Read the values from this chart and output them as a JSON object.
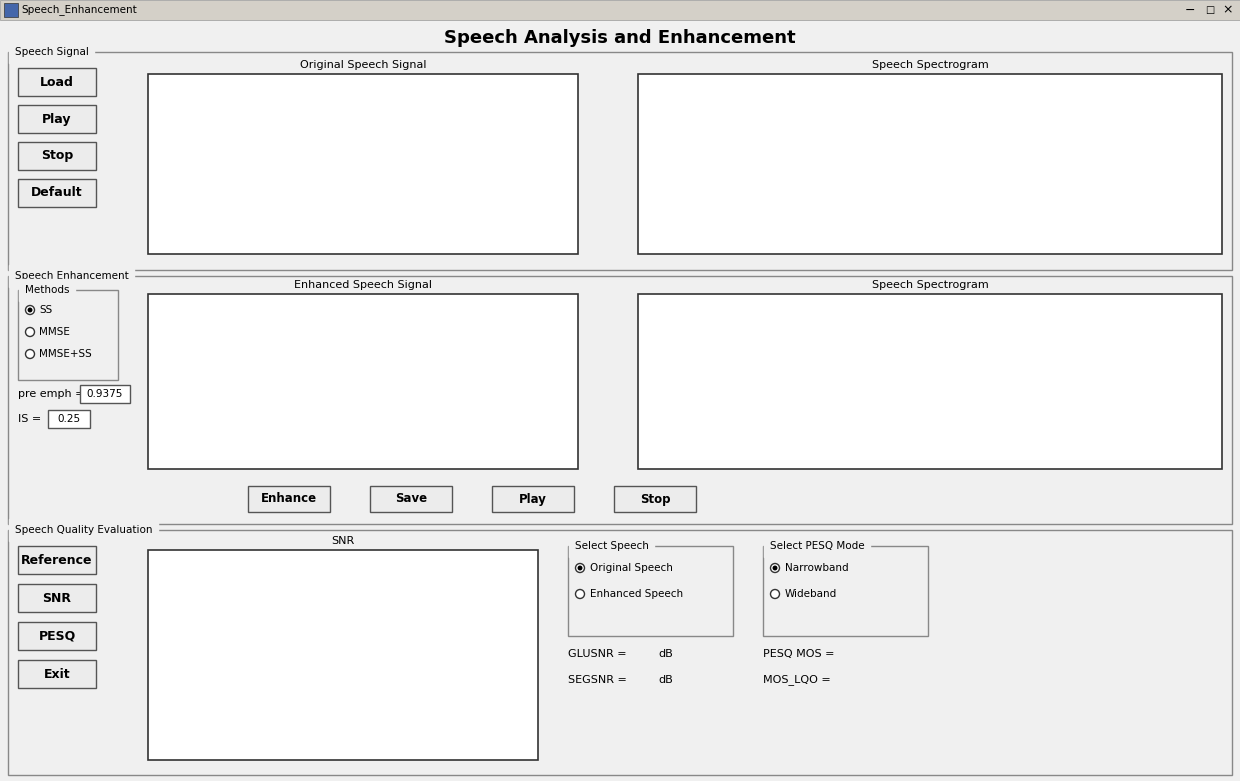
{
  "title": "Speech Analysis and Enhancement",
  "window_title": "Speech_Enhancement",
  "bg_color": "#f0f0f0",
  "section1_label": "Speech Signal",
  "section2_label": "Speech Enhancement",
  "section3_label": "Speech Quality Evaluation",
  "buttons_section1": [
    "Load",
    "Play",
    "Stop",
    "Default"
  ],
  "buttons_section2_bottom": [
    "Enhance",
    "Save",
    "Play",
    "Stop"
  ],
  "buttons_section3": [
    "Reference",
    "SNR",
    "PESQ",
    "Exit"
  ],
  "plot_labels_section1": [
    "Original Speech Signal",
    "Speech Spectrogram"
  ],
  "plot_labels_section2": [
    "Enhanced Speech Signal",
    "Speech Spectrogram"
  ],
  "plot_label_section3": "SNR",
  "methods_label": "Methods",
  "methods": [
    "SS",
    "MMSE",
    "MMSE+SS"
  ],
  "methods_selected": [
    true,
    false,
    false
  ],
  "pre_emph_label": "pre emph =",
  "pre_emph_value": "0.9375",
  "IS_label": "IS =",
  "IS_value": "0.25",
  "select_speech_label": "Select Speech",
  "select_speech_options": [
    "Original Speech",
    "Enhanced Speech"
  ],
  "select_speech_selected": [
    true,
    false
  ],
  "select_pesq_label": "Select PESQ Mode",
  "select_pesq_options": [
    "Narrowband",
    "Wideband"
  ],
  "select_pesq_selected": [
    true,
    false
  ],
  "GLOSNR_label": "GLUSNR =",
  "GLOSNR_unit": "dB",
  "SEGSNR_label": "SEGSNR =",
  "SEGSNR_unit": "dB",
  "PESQ_MOS_label": "PESQ MOS =",
  "MOS_LQO_label": "MOS_LQO ="
}
